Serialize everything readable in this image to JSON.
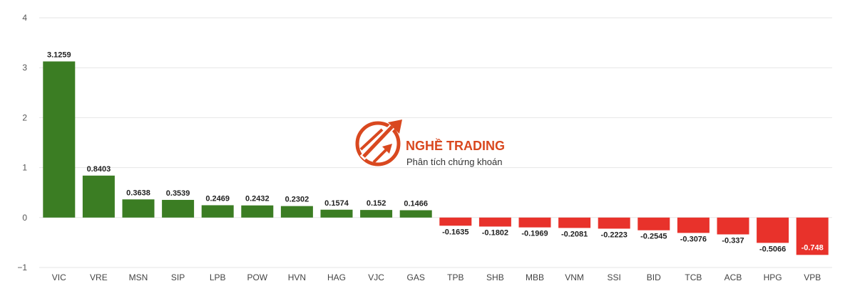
{
  "colors": {
    "positive": "#3b7d23",
    "negative": "#e8322b",
    "grid": "#e6e6e6",
    "brand": "#d9481f"
  },
  "watermark": {
    "icon": "trading-arrows-logo-icon",
    "title": "NGHỀ TRADING",
    "subtitle": "Phân tích chứng khoán"
  },
  "chart_data": {
    "type": "bar",
    "categories": [
      "VIC",
      "VRE",
      "MSN",
      "SIP",
      "LPB",
      "POW",
      "HVN",
      "HAG",
      "VJC",
      "GAS",
      "TPB",
      "SHB",
      "MBB",
      "VNM",
      "SSI",
      "BID",
      "TCB",
      "ACB",
      "HPG",
      "VPB"
    ],
    "values": [
      3.1259,
      0.8403,
      0.3638,
      0.3539,
      0.2469,
      0.2432,
      0.2302,
      0.1574,
      0.152,
      0.1466,
      -0.1635,
      -0.1802,
      -0.1969,
      -0.2081,
      -0.2223,
      -0.2545,
      -0.3076,
      -0.337,
      -0.5066,
      -0.748
    ],
    "value_labels": [
      "3.1259",
      "0.8403",
      "0.3638",
      "0.3539",
      "0.2469",
      "0.2432",
      "0.2302",
      "0.1574",
      "0.152",
      "0.1466",
      "-0.1635",
      "-0.1802",
      "-0.1969",
      "-0.2081",
      "-0.2223",
      "-0.2545",
      "-0.3076",
      "-0.337",
      "-0.5066",
      "-0.748"
    ],
    "yticks": [
      "4",
      "3",
      "2",
      "1",
      "0",
      "−1"
    ],
    "ylim": [
      -1,
      4
    ],
    "grid": true,
    "legend": "none"
  }
}
